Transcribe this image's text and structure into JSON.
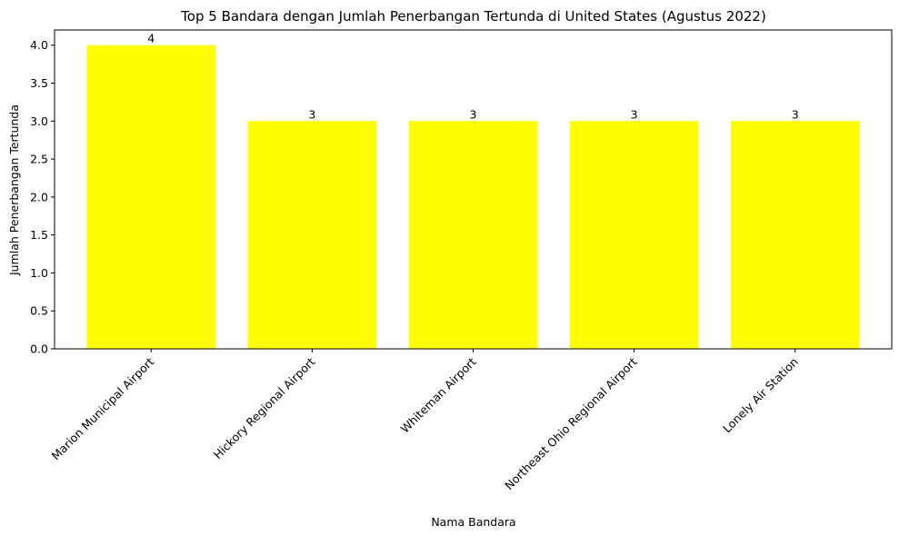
{
  "chart_data": {
    "type": "bar",
    "title": "Top 5 Bandara dengan Jumlah Penerbangan Tertunda di United States (Agustus 2022)",
    "xlabel": "Nama Bandara",
    "ylabel": "Jumlah Penerbangan Tertunda",
    "categories": [
      "Marion Municipal Airport",
      "Hickory Regional Airport",
      "Whiteman Airport",
      "Northeast Ohio Regional Airport",
      "Lonely Air Station"
    ],
    "values": [
      4,
      3,
      3,
      3,
      3
    ],
    "data_labels": [
      "4",
      "3",
      "3",
      "3",
      "3"
    ],
    "ylim": [
      0,
      4.2
    ],
    "yticks": [
      0.0,
      0.5,
      1.0,
      1.5,
      2.0,
      2.5,
      3.0,
      3.5,
      4.0
    ],
    "ytick_labels": [
      "0.0",
      "0.5",
      "1.0",
      "1.5",
      "2.0",
      "2.5",
      "3.0",
      "3.5",
      "4.0"
    ],
    "bar_color": "#ffff00",
    "grid": false,
    "legend": "none"
  }
}
